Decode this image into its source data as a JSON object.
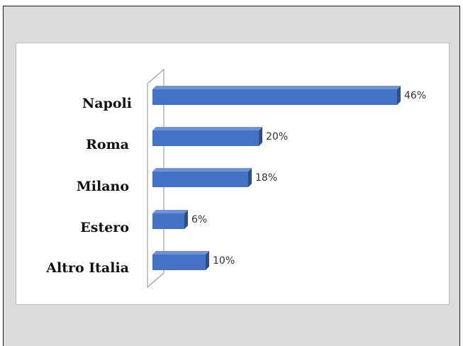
{
  "chart_data": {
    "type": "bar",
    "orientation": "horizontal",
    "style": "3d",
    "categories": [
      "Napoli",
      "Roma",
      "Milano",
      "Estero",
      "Altro Italia"
    ],
    "values": [
      46,
      20,
      18,
      6,
      10
    ],
    "value_labels": [
      "46%",
      "20%",
      "18%",
      "6%",
      "10%"
    ],
    "unit": "%",
    "title": "",
    "xlabel": "",
    "ylabel": "",
    "xlim": [
      0,
      46
    ],
    "grid": false,
    "legend": "none",
    "colors": {
      "bar_front": "#4472c4",
      "bar_top": "#6d93d6",
      "bar_side": "#2b4e8c",
      "frame_background": "#dcdcdc",
      "plot_background": "#ffffff"
    }
  }
}
